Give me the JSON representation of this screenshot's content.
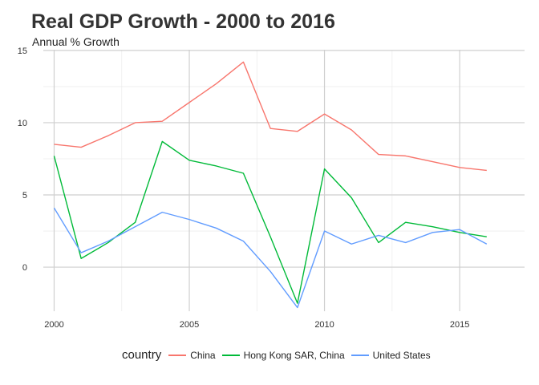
{
  "chart_data": {
    "type": "line",
    "title": "Real GDP Growth - 2000 to 2016",
    "subtitle": "Annual % Growth",
    "xlabel": "",
    "ylabel": "",
    "x": [
      2000,
      2001,
      2002,
      2003,
      2004,
      2005,
      2006,
      2007,
      2008,
      2009,
      2010,
      2011,
      2012,
      2013,
      2014,
      2015,
      2016
    ],
    "xlim": [
      1999.6,
      2017.4
    ],
    "ylim": [
      -3.05,
      15.05
    ],
    "xticks": [
      2000,
      2005,
      2010,
      2015
    ],
    "xtick_labels": [
      "2000",
      "2005",
      "2010",
      "2015"
    ],
    "yticks": [
      0,
      5,
      10,
      15
    ],
    "ytick_labels": [
      "0",
      "5",
      "10",
      "15"
    ],
    "grid": true,
    "legend": {
      "title": "country",
      "position": "bottom"
    },
    "series": [
      {
        "name": "China",
        "color": "#F8766D",
        "values": [
          8.5,
          8.3,
          9.1,
          10.0,
          10.1,
          11.4,
          12.7,
          14.2,
          9.6,
          9.4,
          10.6,
          9.5,
          7.8,
          7.7,
          7.3,
          6.9,
          6.7
        ]
      },
      {
        "name": "Hong Kong SAR, China",
        "color": "#00BA38",
        "values": [
          7.7,
          0.6,
          1.7,
          3.1,
          8.7,
          7.4,
          7.0,
          6.5,
          2.1,
          -2.5,
          6.8,
          4.8,
          1.7,
          3.1,
          2.8,
          2.4,
          2.1
        ]
      },
      {
        "name": "United States",
        "color": "#619CFF",
        "values": [
          4.1,
          1.0,
          1.8,
          2.8,
          3.8,
          3.3,
          2.7,
          1.8,
          -0.3,
          -2.8,
          2.5,
          1.6,
          2.2,
          1.7,
          2.4,
          2.6,
          1.6
        ]
      }
    ]
  }
}
